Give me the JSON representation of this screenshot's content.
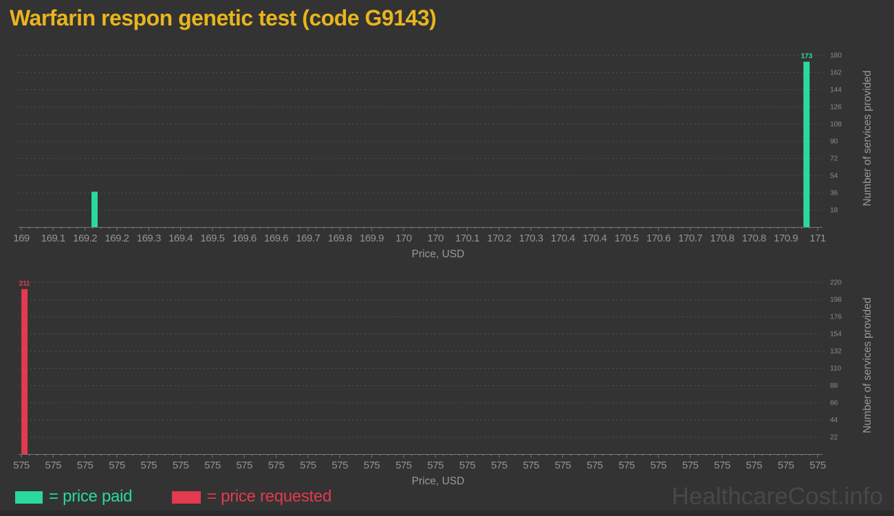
{
  "title": "Warfarin respon genetic test (code G9143)",
  "watermark": "HealthcareCost.info",
  "legend": {
    "paid_label": "= price paid",
    "requested_label": "= price requested"
  },
  "colors": {
    "background": "#333333",
    "title": "#e8b51c",
    "paid": "#29d9a0",
    "requested": "#e23a4e",
    "grid": "#505050",
    "axis_line": "#787878",
    "x_tick_text": "#949494",
    "y_tick_text": "#8a8a8a",
    "axis_title_text": "#9a9a9a",
    "watermark": "#484848"
  },
  "chart_data": [
    {
      "type": "bar",
      "name": "price-paid",
      "series": "price paid",
      "color_key": "paid",
      "xlabel": "Price, USD",
      "ylabel": "Number of services provided",
      "x_range": [
        169,
        171
      ],
      "x_tick_labels": [
        "169",
        "169.1",
        "169.2",
        "169.2",
        "169.3",
        "169.4",
        "169.5",
        "169.6",
        "169.6",
        "169.7",
        "169.8",
        "169.9",
        "170",
        "170",
        "170.1",
        "170.2",
        "170.3",
        "170.4",
        "170.4",
        "170.5",
        "170.6",
        "170.7",
        "170.8",
        "170.8",
        "170.9",
        "171"
      ],
      "y_ticks": [
        18,
        36,
        54,
        72,
        90,
        108,
        126,
        144,
        162,
        180
      ],
      "ylim": [
        0,
        186
      ],
      "grid": "dashed",
      "legend_position": "bottom-left",
      "bars": [
        {
          "price": 169.18,
          "count": 37,
          "tick_index": 2.3,
          "label": ""
        },
        {
          "price": 170.97,
          "count": 173,
          "tick_index": 24.65,
          "label": "173"
        }
      ]
    },
    {
      "type": "bar",
      "name": "price-requested",
      "series": "price requested",
      "color_key": "requested",
      "xlabel": "Price, USD",
      "ylabel": "Number of services provided",
      "x_range": [
        575,
        575
      ],
      "x_tick_labels": [
        "575",
        "575",
        "575",
        "575",
        "575",
        "575",
        "575",
        "575",
        "575",
        "575",
        "575",
        "575",
        "575",
        "575",
        "575",
        "575",
        "575",
        "575",
        "575",
        "575",
        "575",
        "575",
        "575",
        "575",
        "575",
        "575"
      ],
      "y_ticks": [
        22,
        44,
        66,
        88,
        110,
        132,
        154,
        176,
        198,
        220
      ],
      "ylim": [
        0,
        227
      ],
      "grid": "dashed",
      "legend_position": "bottom-left",
      "bars": [
        {
          "price": 575,
          "count": 211,
          "tick_index": 0.1,
          "label": "211"
        }
      ]
    }
  ]
}
